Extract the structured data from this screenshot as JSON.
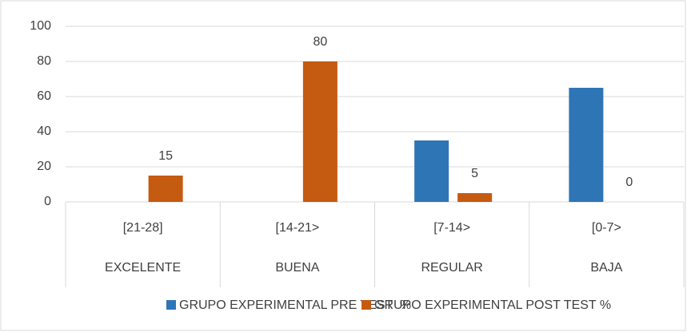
{
  "chart_data": {
    "type": "bar",
    "categories": [
      "[21-28]",
      "[14-21>",
      "[7-14>",
      "[0-7>"
    ],
    "groups": [
      "EXCELENTE",
      "BUENA",
      "REGULAR",
      "BAJA"
    ],
    "series": [
      {
        "name": "GRUPO EXPERIMENTAL PRE TEST  %",
        "color": "#2e75b6",
        "values": [
          0,
          0,
          35,
          65
        ]
      },
      {
        "name": "GRUPO EXPERIMENTAL POST TEST %",
        "color": "#c55a11",
        "values": [
          15,
          80,
          5,
          0
        ],
        "value_labels": [
          "15",
          "80",
          "5",
          "0"
        ]
      }
    ],
    "ylim": [
      0,
      100
    ],
    "yticks": [
      0,
      20,
      40,
      60,
      80,
      100
    ],
    "grid": true,
    "legend": "bottom"
  }
}
